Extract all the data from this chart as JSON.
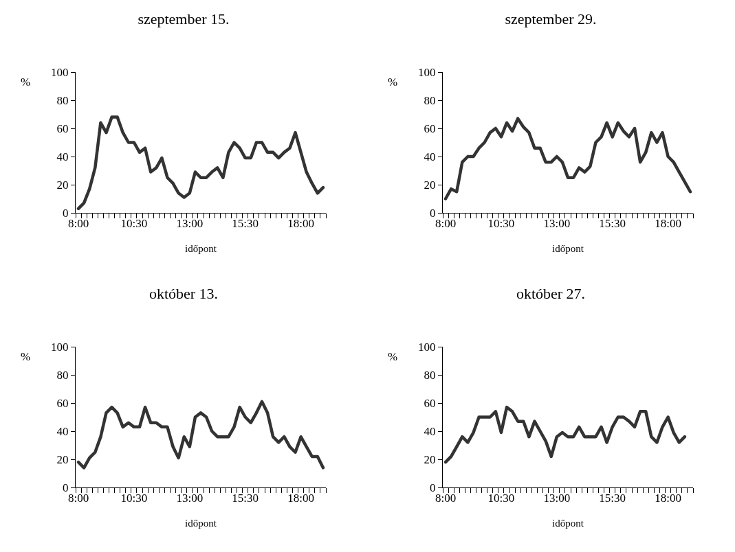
{
  "chart_data": [
    {
      "type": "line",
      "title": "szeptember 15.",
      "xlabel": "időpont",
      "ylabel": "%",
      "categories": [
        "8:00",
        null,
        null,
        null,
        null,
        null,
        null,
        null,
        null,
        null,
        "10:30",
        null,
        null,
        null,
        null,
        null,
        null,
        null,
        null,
        null,
        "13:00",
        null,
        null,
        null,
        null,
        null,
        null,
        null,
        null,
        null,
        "15:30",
        null,
        null,
        null,
        null,
        null,
        null,
        null,
        null,
        null,
        "18:00",
        null,
        null,
        null,
        null
      ],
      "series": [
        {
          "color": "#333333",
          "values": [
            3,
            7,
            17,
            32,
            64,
            57,
            68,
            68,
            57,
            50,
            50,
            43,
            46,
            29,
            32,
            39,
            25,
            21,
            14,
            11,
            14,
            29,
            25,
            25,
            29,
            32,
            25,
            43,
            50,
            46,
            39,
            39,
            50,
            50,
            43,
            43,
            39,
            43,
            46,
            57,
            43,
            29,
            21,
            14,
            18
          ]
        }
      ],
      "ylim": [
        0,
        100
      ],
      "yticks": [
        0,
        20,
        40,
        60,
        80,
        100
      ],
      "grid": false,
      "marker": "none",
      "line_style": "solid"
    },
    {
      "type": "line",
      "title": "szeptember 29.",
      "xlabel": "időpont",
      "ylabel": "%",
      "categories": [
        "8:00",
        null,
        null,
        null,
        null,
        null,
        null,
        null,
        null,
        null,
        "10:30",
        null,
        null,
        null,
        null,
        null,
        null,
        null,
        null,
        null,
        "13:00",
        null,
        null,
        null,
        null,
        null,
        null,
        null,
        null,
        null,
        "15:30",
        null,
        null,
        null,
        null,
        null,
        null,
        null,
        null,
        null,
        "18:00",
        null,
        null,
        null,
        null
      ],
      "series": [
        {
          "color": "#333333",
          "values": [
            10,
            17,
            15,
            36,
            40,
            40,
            46,
            50,
            57,
            60,
            54,
            64,
            58,
            67,
            61,
            57,
            46,
            46,
            36,
            36,
            40,
            36,
            25,
            25,
            32,
            29,
            33,
            50,
            54,
            64,
            54,
            64,
            58,
            54,
            60,
            36,
            43,
            57,
            50,
            57,
            40,
            36,
            29,
            22,
            15
          ]
        }
      ],
      "ylim": [
        0,
        100
      ],
      "yticks": [
        0,
        20,
        40,
        60,
        80,
        100
      ],
      "grid": false,
      "marker": "none",
      "line_style": "solid"
    },
    {
      "type": "line",
      "title": "október 13.",
      "xlabel": "időpont",
      "ylabel": "%",
      "categories": [
        "8:00",
        null,
        null,
        null,
        null,
        null,
        null,
        null,
        null,
        null,
        "10:30",
        null,
        null,
        null,
        null,
        null,
        null,
        null,
        null,
        null,
        "13:00",
        null,
        null,
        null,
        null,
        null,
        null,
        null,
        null,
        null,
        "15:30",
        null,
        null,
        null,
        null,
        null,
        null,
        null,
        null,
        null,
        "18:00",
        null,
        null,
        null,
        null
      ],
      "series": [
        {
          "color": "#333333",
          "values": [
            18,
            14,
            21,
            25,
            36,
            53,
            57,
            53,
            43,
            46,
            43,
            43,
            57,
            46,
            46,
            43,
            43,
            29,
            21,
            36,
            29,
            50,
            53,
            50,
            40,
            36,
            36,
            36,
            43,
            57,
            50,
            46,
            53,
            61,
            53,
            36,
            32,
            36,
            29,
            25,
            36,
            29,
            22,
            22,
            14
          ]
        }
      ],
      "ylim": [
        0,
        100
      ],
      "yticks": [
        0,
        20,
        40,
        60,
        80,
        100
      ],
      "grid": false,
      "marker": "none",
      "line_style": "solid"
    },
    {
      "type": "line",
      "title": "október 27.",
      "xlabel": "időpont",
      "ylabel": "%",
      "categories": [
        "8:00",
        null,
        null,
        null,
        null,
        null,
        null,
        null,
        null,
        null,
        "10:30",
        null,
        null,
        null,
        null,
        null,
        null,
        null,
        null,
        null,
        "13:00",
        null,
        null,
        null,
        null,
        null,
        null,
        null,
        null,
        null,
        "15:30",
        null,
        null,
        null,
        null,
        null,
        null,
        null,
        null,
        null,
        "18:00",
        null,
        null,
        null,
        null
      ],
      "series": [
        {
          "color": "#333333",
          "values": [
            18,
            22,
            29,
            36,
            32,
            39,
            50,
            50,
            50,
            54,
            39,
            57,
            54,
            47,
            47,
            36,
            47,
            40,
            33,
            22,
            36,
            39,
            36,
            36,
            43,
            36,
            36,
            36,
            43,
            32,
            43,
            50,
            50,
            47,
            43,
            54,
            54,
            36,
            32,
            43,
            50,
            39,
            32,
            36,
            null
          ]
        }
      ],
      "ylim": [
        0,
        100
      ],
      "yticks": [
        0,
        20,
        40,
        60,
        80,
        100
      ],
      "grid": false,
      "marker": "none",
      "line_style": "solid"
    }
  ]
}
